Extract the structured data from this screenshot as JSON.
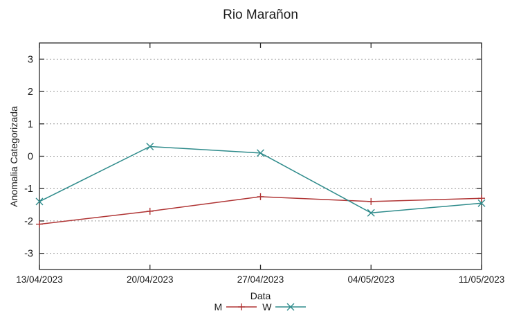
{
  "chart_data": {
    "type": "line",
    "title": "Rio Marañon",
    "xlabel": "Data",
    "ylabel": "Anomalia Categorizada",
    "x_tick_labels": [
      "13/04/2023",
      "20/04/2023",
      "27/04/2023",
      "04/05/2023",
      "11/05/2023"
    ],
    "y_ticks": [
      3,
      2,
      1,
      0,
      -1,
      -2,
      -3
    ],
    "ylim": [
      -3.5,
      3.5
    ],
    "grid": true,
    "grid_style": "dotted",
    "legend_position": "bottom-center",
    "series": [
      {
        "name": "M",
        "marker": "plus",
        "color": "#b03535",
        "values": [
          -2.1,
          -1.7,
          -1.25,
          -1.4,
          -1.3
        ]
      },
      {
        "name": "W",
        "marker": "cross",
        "color": "#2e8b8b",
        "values": [
          -1.4,
          0.3,
          0.1,
          -1.75,
          -1.45
        ]
      }
    ],
    "colors": {
      "border": "#2b2b2b",
      "grid": "#9a9a9a",
      "text": "#1a1a1a"
    }
  }
}
